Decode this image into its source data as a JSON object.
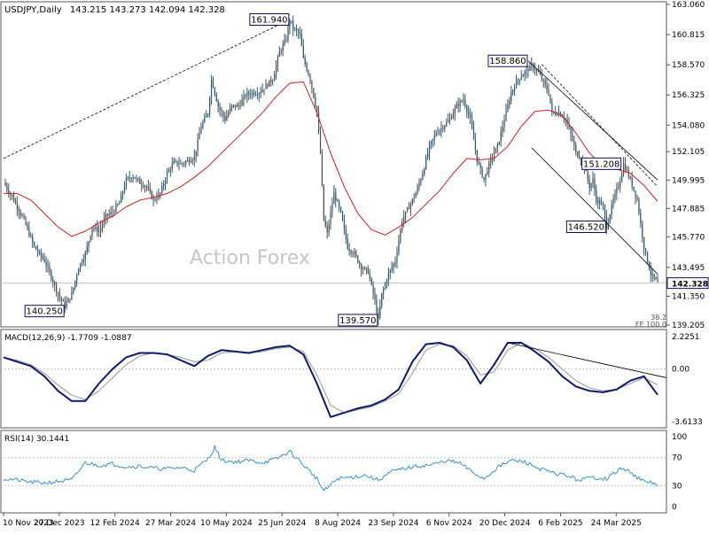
{
  "chart_data": {
    "type": "candlestick",
    "title": "USDJPY,Daily",
    "ohlc_header": "143.215 143.273 142.094 142.328",
    "watermark": "Action Forex",
    "last_price": 142.328,
    "colors": {
      "candle": "#3d5566",
      "ma": "#d42020",
      "macd": "#0d1a6e",
      "signal": "#999999",
      "rsi": "#3a8fd6",
      "trend": "#000000",
      "label_border": "#101060",
      "grid": "#c0c0c0"
    },
    "x_ticks": [
      "10 Nov 2023",
      "27 Dec 2023",
      "12 Feb 2024",
      "27 Mar 2024",
      "10 May 2024",
      "25 Jun 2024",
      "8 Aug 2024",
      "23 Sep 2024",
      "6 Nov 2024",
      "20 Dec 2024",
      "6 Feb 2025",
      "24 Mar 2025"
    ],
    "price_panel": {
      "ylim": [
        139.205,
        163.06
      ],
      "y_ticks": [
        "163.060",
        "160.815",
        "158.570",
        "156.325",
        "154.080",
        "152.105",
        "149.995",
        "147.885",
        "145.770",
        "143.495",
        "141.350",
        "139.205"
      ],
      "price_path": [
        [
          0,
          149.8
        ],
        [
          6,
          148.5
        ],
        [
          12,
          147.0
        ],
        [
          18,
          145.0
        ],
        [
          24,
          144.0
        ],
        [
          28,
          142.8
        ],
        [
          32,
          141.5
        ],
        [
          36,
          140.6
        ],
        [
          40,
          141.5
        ],
        [
          44,
          143.5
        ],
        [
          48,
          144.5
        ],
        [
          52,
          146.5
        ],
        [
          56,
          146.2
        ],
        [
          60,
          147.3
        ],
        [
          64,
          147.6
        ],
        [
          68,
          148.3
        ],
        [
          72,
          150.0
        ],
        [
          76,
          150.3
        ],
        [
          80,
          149.8
        ],
        [
          84,
          149.5
        ],
        [
          88,
          148.5
        ],
        [
          92,
          149.0
        ],
        [
          96,
          150.5
        ],
        [
          100,
          151.3
        ],
        [
          104,
          151.2
        ],
        [
          108,
          151.4
        ],
        [
          112,
          151.7
        ],
        [
          116,
          154.0
        ],
        [
          120,
          155.0
        ],
        [
          122,
          157.5
        ],
        [
          126,
          155.5
        ],
        [
          130,
          154.5
        ],
        [
          134,
          155.5
        ],
        [
          138,
          155.5
        ],
        [
          142,
          156.3
        ],
        [
          146,
          156.5
        ],
        [
          150,
          156.5
        ],
        [
          154,
          157.0
        ],
        [
          158,
          157.5
        ],
        [
          162,
          159.5
        ],
        [
          166,
          160.5
        ],
        [
          168,
          161.94
        ],
        [
          170,
          161.3
        ],
        [
          174,
          160.8
        ],
        [
          176,
          159.0
        ],
        [
          180,
          157.5
        ],
        [
          184,
          155.0
        ],
        [
          186,
          152.0
        ],
        [
          188,
          147.0
        ],
        [
          190,
          146.0
        ],
        [
          194,
          149.0
        ],
        [
          198,
          147.5
        ],
        [
          202,
          145.0
        ],
        [
          206,
          144.5
        ],
        [
          210,
          143.5
        ],
        [
          214,
          143.2
        ],
        [
          218,
          141.0
        ],
        [
          220,
          139.57
        ],
        [
          222,
          141.5
        ],
        [
          226,
          143.0
        ],
        [
          230,
          144.0
        ],
        [
          234,
          147.0
        ],
        [
          238,
          148.0
        ],
        [
          242,
          149.0
        ],
        [
          246,
          150.5
        ],
        [
          250,
          152.5
        ],
        [
          254,
          153.5
        ],
        [
          258,
          154.0
        ],
        [
          262,
          154.5
        ],
        [
          266,
          155.5
        ],
        [
          270,
          156.0
        ],
        [
          274,
          154.5
        ],
        [
          278,
          151.5
        ],
        [
          282,
          150.0
        ],
        [
          286,
          151.5
        ],
        [
          290,
          152.5
        ],
        [
          294,
          154.5
        ],
        [
          298,
          156.5
        ],
        [
          302,
          157.5
        ],
        [
          306,
          158.0
        ],
        [
          310,
          158.5
        ],
        [
          314,
          158.0
        ],
        [
          318,
          157.0
        ],
        [
          320,
          156.5
        ],
        [
          322,
          155.0
        ],
        [
          326,
          155.0
        ],
        [
          330,
          154.5
        ],
        [
          334,
          153.0
        ],
        [
          336,
          152.0
        ],
        [
          340,
          151.5
        ],
        [
          344,
          149.5
        ],
        [
          346,
          150.0
        ],
        [
          348,
          148.5
        ],
        [
          352,
          148.0
        ],
        [
          354,
          146.52
        ],
        [
          358,
          148.5
        ],
        [
          362,
          150.0
        ],
        [
          364,
          151.2
        ],
        [
          368,
          150.0
        ],
        [
          372,
          148.5
        ],
        [
          376,
          145.0
        ],
        [
          380,
          143.0
        ],
        [
          384,
          142.328
        ]
      ],
      "ma_path": [
        [
          0,
          149.0
        ],
        [
          8,
          149.0
        ],
        [
          16,
          148.5
        ],
        [
          24,
          147.5
        ],
        [
          32,
          146.5
        ],
        [
          40,
          145.8
        ],
        [
          48,
          146.2
        ],
        [
          56,
          146.8
        ],
        [
          64,
          147.3
        ],
        [
          72,
          148.0
        ],
        [
          80,
          148.5
        ],
        [
          88,
          148.7
        ],
        [
          96,
          149.0
        ],
        [
          104,
          149.5
        ],
        [
          112,
          150.2
        ],
        [
          120,
          151.0
        ],
        [
          128,
          152.0
        ],
        [
          136,
          153.0
        ],
        [
          144,
          154.0
        ],
        [
          152,
          155.0
        ],
        [
          160,
          156.2
        ],
        [
          168,
          157.2
        ],
        [
          176,
          157.3
        ],
        [
          184,
          155.0
        ],
        [
          192,
          152.0
        ],
        [
          200,
          149.5
        ],
        [
          208,
          147.5
        ],
        [
          216,
          146.3
        ],
        [
          224,
          145.9
        ],
        [
          232,
          146.5
        ],
        [
          240,
          147.2
        ],
        [
          248,
          148.2
        ],
        [
          256,
          149.2
        ],
        [
          264,
          150.5
        ],
        [
          272,
          151.6
        ],
        [
          280,
          151.5
        ],
        [
          288,
          151.6
        ],
        [
          296,
          152.5
        ],
        [
          304,
          154.0
        ],
        [
          312,
          155.1
        ],
        [
          320,
          155.2
        ],
        [
          328,
          154.8
        ],
        [
          336,
          153.5
        ],
        [
          344,
          152.0
        ],
        [
          352,
          151.0
        ],
        [
          360,
          150.8
        ],
        [
          368,
          150.5
        ],
        [
          376,
          149.6
        ],
        [
          384,
          148.4
        ]
      ],
      "annotations": [
        {
          "text": "161.940",
          "index": 168,
          "price": 161.94,
          "pos": "left"
        },
        {
          "text": "140.250",
          "index": 36,
          "price": 140.25,
          "pos": "left"
        },
        {
          "text": "139.570",
          "index": 220,
          "price": 139.57,
          "pos": "left"
        },
        {
          "text": "158.860",
          "index": 308,
          "price": 158.86,
          "pos": "left"
        },
        {
          "text": "151.208",
          "index": 363,
          "price": 151.208,
          "pos": "left"
        },
        {
          "text": "146.520",
          "index": 354,
          "price": 146.52,
          "pos": "left"
        }
      ],
      "fib_labels": [
        "38.2",
        "FE 100.0"
      ],
      "trendlines": [
        {
          "from": [
            0,
            151.6
          ],
          "to": [
            168,
            161.94
          ],
          "dashed": true
        },
        {
          "from": [
            308,
            158.86
          ],
          "to": [
            384,
            150.0
          ],
          "dashed": false
        },
        {
          "from": [
            310,
            152.4
          ],
          "to": [
            384,
            143.0
          ],
          "dashed": false
        },
        {
          "from": [
            316,
            158.6
          ],
          "to": [
            384,
            149.5
          ],
          "dashed": true
        }
      ]
    },
    "macd_panel": {
      "label": "MACD(12,26,9) -1.7709 -1.0887",
      "ylim": [
        -3.6133,
        2.2251
      ],
      "y_ticks": [
        "2.2251",
        "0.00",
        "-3.6133"
      ],
      "macd_path": [
        [
          0,
          0.8
        ],
        [
          8,
          0.5
        ],
        [
          16,
          0.2
        ],
        [
          24,
          -0.5
        ],
        [
          32,
          -1.5
        ],
        [
          40,
          -2.2
        ],
        [
          48,
          -2.2
        ],
        [
          56,
          -1.0
        ],
        [
          64,
          0.0
        ],
        [
          72,
          0.8
        ],
        [
          80,
          1.1
        ],
        [
          88,
          1.1
        ],
        [
          96,
          1.0
        ],
        [
          104,
          0.6
        ],
        [
          112,
          0.2
        ],
        [
          120,
          0.9
        ],
        [
          128,
          1.3
        ],
        [
          136,
          1.2
        ],
        [
          144,
          1.1
        ],
        [
          152,
          1.3
        ],
        [
          160,
          1.5
        ],
        [
          168,
          1.6
        ],
        [
          176,
          1.0
        ],
        [
          184,
          -1.0
        ],
        [
          192,
          -3.3
        ],
        [
          200,
          -3.0
        ],
        [
          208,
          -2.7
        ],
        [
          216,
          -2.5
        ],
        [
          224,
          -2.1
        ],
        [
          232,
          -1.4
        ],
        [
          240,
          0.5
        ],
        [
          248,
          1.7
        ],
        [
          256,
          1.8
        ],
        [
          264,
          1.5
        ],
        [
          272,
          0.6
        ],
        [
          280,
          -1.0
        ],
        [
          288,
          0.3
        ],
        [
          296,
          1.8
        ],
        [
          304,
          1.8
        ],
        [
          312,
          1.2
        ],
        [
          320,
          0.5
        ],
        [
          328,
          -0.5
        ],
        [
          336,
          -1.2
        ],
        [
          344,
          -1.5
        ],
        [
          352,
          -1.6
        ],
        [
          360,
          -1.4
        ],
        [
          368,
          -0.8
        ],
        [
          376,
          -0.5
        ],
        [
          384,
          -1.77
        ]
      ],
      "signal_path": [
        [
          0,
          0.8
        ],
        [
          8,
          0.6
        ],
        [
          16,
          0.3
        ],
        [
          24,
          -0.3
        ],
        [
          32,
          -1.1
        ],
        [
          40,
          -1.8
        ],
        [
          48,
          -2.1
        ],
        [
          56,
          -1.5
        ],
        [
          64,
          -0.6
        ],
        [
          72,
          0.3
        ],
        [
          80,
          0.9
        ],
        [
          88,
          1.1
        ],
        [
          96,
          1.0
        ],
        [
          104,
          0.8
        ],
        [
          112,
          0.5
        ],
        [
          120,
          0.6
        ],
        [
          128,
          1.1
        ],
        [
          136,
          1.2
        ],
        [
          144,
          1.1
        ],
        [
          152,
          1.2
        ],
        [
          160,
          1.4
        ],
        [
          168,
          1.5
        ],
        [
          176,
          1.2
        ],
        [
          184,
          -0.4
        ],
        [
          192,
          -2.5
        ],
        [
          200,
          -3.0
        ],
        [
          208,
          -2.8
        ],
        [
          216,
          -2.6
        ],
        [
          224,
          -2.2
        ],
        [
          232,
          -1.7
        ],
        [
          240,
          -0.3
        ],
        [
          248,
          1.3
        ],
        [
          256,
          1.7
        ],
        [
          264,
          1.6
        ],
        [
          272,
          0.9
        ],
        [
          280,
          -0.4
        ],
        [
          288,
          -0.2
        ],
        [
          296,
          1.3
        ],
        [
          304,
          1.8
        ],
        [
          312,
          1.4
        ],
        [
          320,
          0.8
        ],
        [
          328,
          0.0
        ],
        [
          336,
          -0.8
        ],
        [
          344,
          -1.3
        ],
        [
          352,
          -1.5
        ],
        [
          360,
          -1.4
        ],
        [
          368,
          -1.0
        ],
        [
          376,
          -0.6
        ],
        [
          384,
          -1.09
        ]
      ],
      "trendline": {
        "from": [
          296,
          1.8
        ],
        "to": [
          400,
          -0.6
        ]
      }
    },
    "rsi_panel": {
      "label": "RSI(14) 30.1441",
      "ylim": [
        0,
        100
      ],
      "y_ticks": [
        "100",
        "70",
        "30",
        "0"
      ],
      "levels": [
        70,
        30
      ],
      "rsi_path": [
        [
          0,
          40
        ],
        [
          8,
          38
        ],
        [
          16,
          35
        ],
        [
          24,
          34
        ],
        [
          32,
          36
        ],
        [
          40,
          38
        ],
        [
          48,
          63
        ],
        [
          56,
          59
        ],
        [
          64,
          61
        ],
        [
          72,
          57
        ],
        [
          80,
          58
        ],
        [
          88,
          55
        ],
        [
          96,
          54
        ],
        [
          104,
          56
        ],
        [
          112,
          52
        ],
        [
          120,
          68
        ],
        [
          124,
          85
        ],
        [
          128,
          66
        ],
        [
          136,
          64
        ],
        [
          144,
          66
        ],
        [
          152,
          63
        ],
        [
          160,
          68
        ],
        [
          168,
          79
        ],
        [
          176,
          60
        ],
        [
          184,
          40
        ],
        [
          188,
          22
        ],
        [
          196,
          40
        ],
        [
          204,
          42
        ],
        [
          212,
          45
        ],
        [
          220,
          38
        ],
        [
          228,
          50
        ],
        [
          236,
          55
        ],
        [
          244,
          58
        ],
        [
          252,
          60
        ],
        [
          260,
          66
        ],
        [
          268,
          62
        ],
        [
          276,
          48
        ],
        [
          282,
          40
        ],
        [
          290,
          56
        ],
        [
          298,
          66
        ],
        [
          306,
          64
        ],
        [
          314,
          55
        ],
        [
          322,
          48
        ],
        [
          330,
          45
        ],
        [
          338,
          38
        ],
        [
          346,
          42
        ],
        [
          354,
          40
        ],
        [
          362,
          54
        ],
        [
          368,
          50
        ],
        [
          372,
          42
        ],
        [
          376,
          35
        ],
        [
          380,
          35
        ],
        [
          384,
          30.14
        ]
      ]
    }
  }
}
